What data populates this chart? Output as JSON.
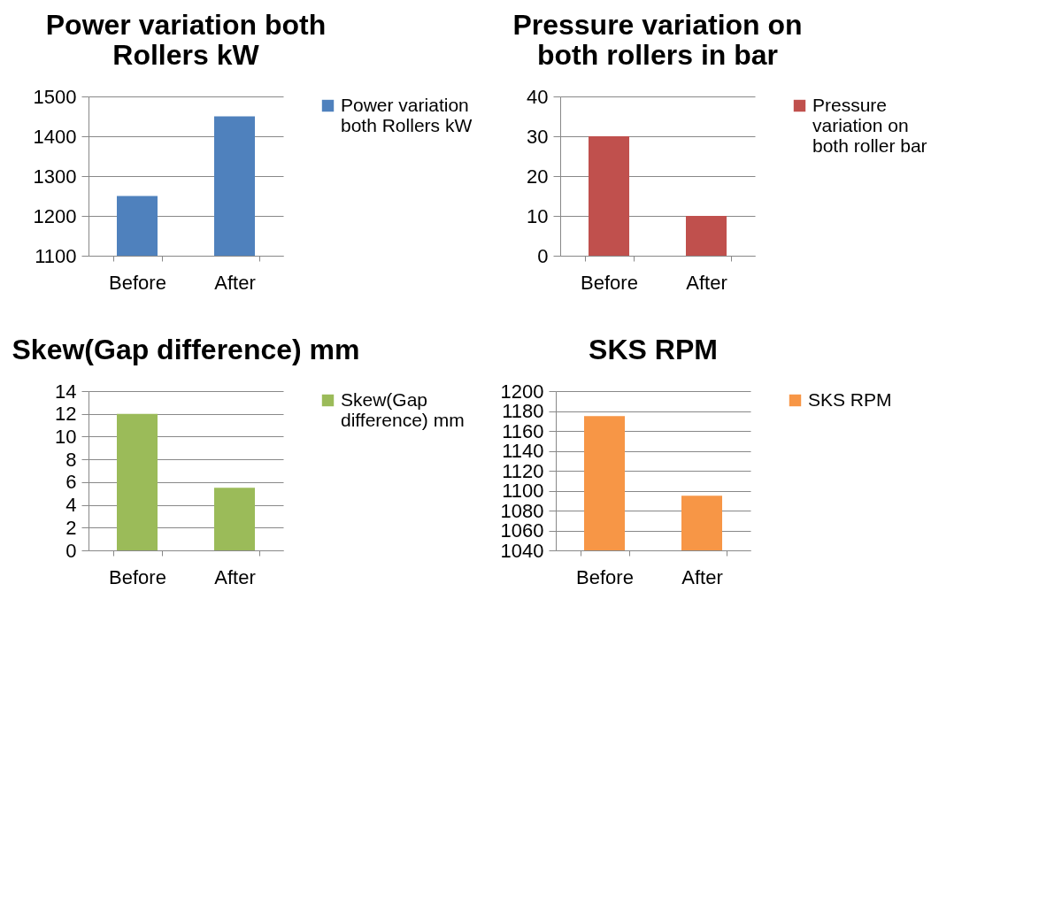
{
  "chart_data": [
    {
      "type": "bar",
      "title": "Power variation both Rollers kW",
      "categories": [
        "Before",
        "After"
      ],
      "series": [
        {
          "name": "Power variation both Rollers kW",
          "color": "#4f81bd",
          "values": [
            1250,
            1450
          ]
        }
      ],
      "ylim": [
        1100,
        1500
      ],
      "yticks": [
        1100,
        1200,
        1300,
        1400,
        1500
      ],
      "grid": "y",
      "legend": "right"
    },
    {
      "type": "bar",
      "title": "Pressure  variation on both rollers in bar",
      "categories": [
        "Before",
        "After"
      ],
      "series": [
        {
          "name": "Pressure variation on both roller bar",
          "color": "#c0504d",
          "values": [
            30,
            10
          ]
        }
      ],
      "ylim": [
        0,
        40
      ],
      "yticks": [
        0,
        10,
        20,
        30,
        40
      ],
      "grid": "y",
      "legend": "right"
    },
    {
      "type": "bar",
      "title": "Skew(Gap difference) mm",
      "categories": [
        "Before",
        "After"
      ],
      "series": [
        {
          "name": "Skew(Gap difference) mm",
          "color": "#9bbb59",
          "values": [
            12,
            5.5
          ]
        }
      ],
      "ylim": [
        0,
        14
      ],
      "yticks": [
        0,
        2,
        4,
        6,
        8,
        10,
        12,
        14
      ],
      "grid": "y",
      "legend": "right"
    },
    {
      "type": "bar",
      "title": "SKS RPM",
      "categories": [
        "Before",
        "After"
      ],
      "series": [
        {
          "name": "SKS RPM",
          "color": "#f79646",
          "values": [
            1175,
            1095
          ]
        }
      ],
      "ylim": [
        1040,
        1200
      ],
      "yticks": [
        1040,
        1060,
        1080,
        1100,
        1120,
        1140,
        1160,
        1180,
        1200
      ],
      "grid": "y",
      "legend": "right"
    }
  ]
}
